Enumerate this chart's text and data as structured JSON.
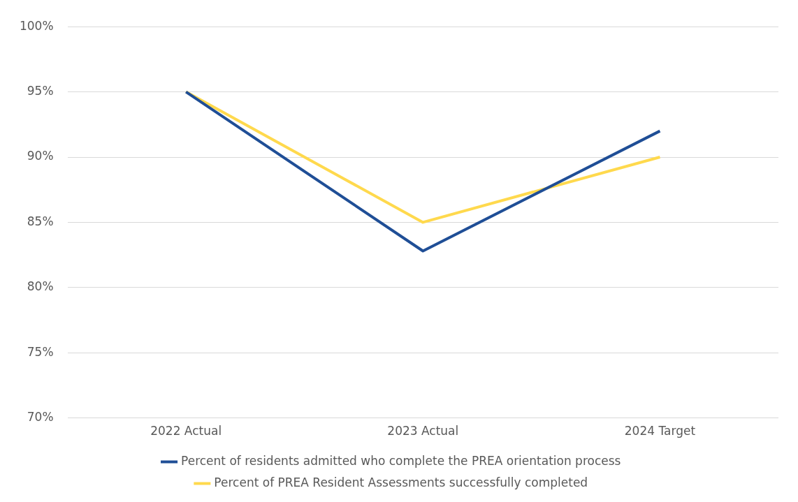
{
  "chart_data": {
    "type": "line",
    "categories": [
      "2022 Actual",
      "2023 Actual",
      "2024 Target"
    ],
    "series": [
      {
        "name": "Percent of residents admitted who complete the PREA orientation process",
        "color": "#1f4e96",
        "values": [
          95,
          82.8,
          92
        ]
      },
      {
        "name": "Percent of PREA Resident Assessments successfully completed",
        "color": "#ffd94d",
        "values": [
          95,
          85,
          90
        ]
      }
    ],
    "ylim": [
      70,
      100
    ],
    "yticks": [
      {
        "value": 70,
        "label": "70%"
      },
      {
        "value": 75,
        "label": "75%"
      },
      {
        "value": 80,
        "label": "80%"
      },
      {
        "value": 85,
        "label": "85%"
      },
      {
        "value": 90,
        "label": "90%"
      },
      {
        "value": 95,
        "label": "95%"
      },
      {
        "value": 100,
        "label": "100%"
      }
    ],
    "grid": "y",
    "legend": "bottom",
    "marker": "none",
    "line_style": "solid"
  }
}
